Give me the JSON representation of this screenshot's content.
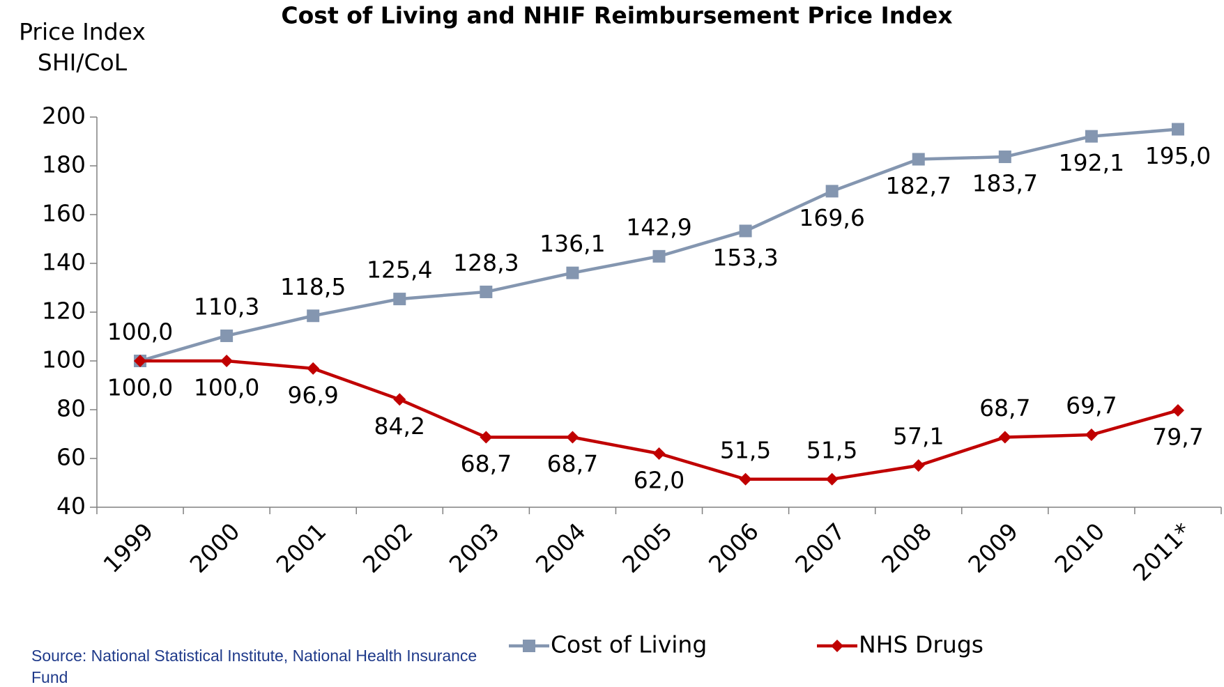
{
  "chart_data": {
    "type": "line",
    "title": "Cost of Living and NHIF Reimbursement Price Index",
    "y_label": "Price Index SHI/CoL",
    "source": "Source: National Statistical Institute, National Health Insurance Fund",
    "categories": [
      "1999",
      "2000",
      "2001",
      "2002",
      "2003",
      "2004",
      "2005",
      "2006",
      "2007",
      "2008",
      "2009",
      "2010",
      "2011*"
    ],
    "series": [
      {
        "name": "Cost of Living",
        "color": "#8496b0",
        "marker": "square",
        "values": [
          100,
          110.3,
          118.5,
          125.4,
          128.3,
          136.1,
          142.9,
          153.3,
          169.6,
          182.7,
          183.7,
          192.1,
          195
        ],
        "value_labels": [
          "100,0",
          "110,3",
          "118,5",
          "125,4",
          "128,3",
          "136,1",
          "142,9",
          "153,3",
          "169,6",
          "182,7",
          "183,7",
          "192,1",
          "195,0"
        ]
      },
      {
        "name": "NHS Drugs",
        "color": "#c00000",
        "marker": "diamond",
        "values": [
          100,
          100,
          96.9,
          84.2,
          68.7,
          68.7,
          62,
          51.5,
          51.5,
          57.1,
          68.7,
          69.7,
          79.7
        ],
        "value_labels": [
          "100,0",
          "100,0",
          "96,9",
          "84,2",
          "68,7",
          "68,7",
          "62,0",
          "51,5",
          "51,5",
          "57,1",
          "68,7",
          "69,7",
          "79,7"
        ]
      }
    ],
    "ylim": [
      40,
      200
    ],
    "yticks": [
      40,
      60,
      80,
      100,
      120,
      140,
      160,
      180,
      200
    ],
    "grid": false,
    "legend": "bottom"
  }
}
